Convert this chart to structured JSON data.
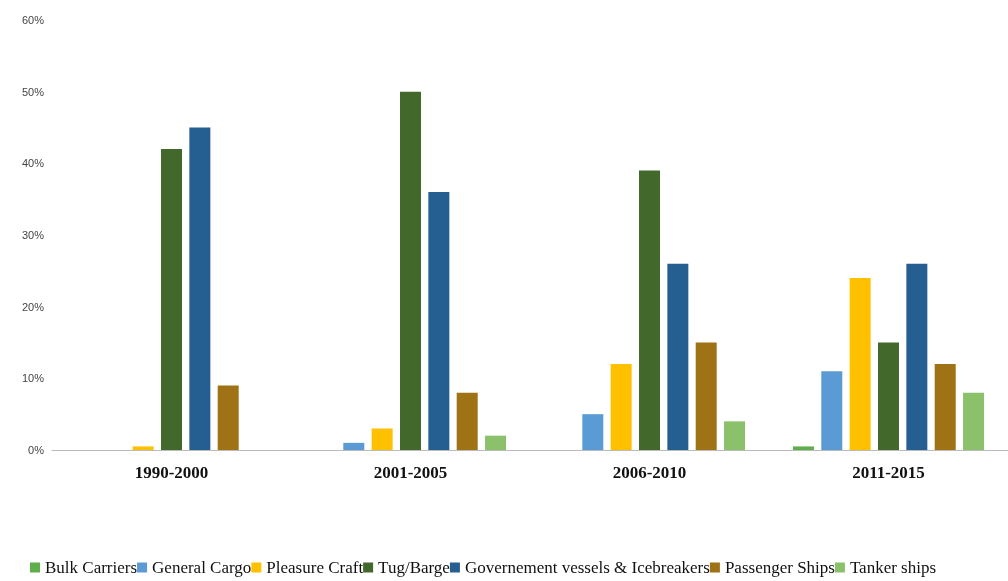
{
  "chart_data": {
    "type": "bar",
    "categories": [
      "1990-2000",
      "2001-2005",
      "2006-2010",
      "2011-2015"
    ],
    "series": [
      {
        "name": "Bulk Carriers",
        "color": "#5fae4c",
        "values": [
          0,
          0,
          0,
          0.5
        ]
      },
      {
        "name": "General Cargo",
        "color": "#5b9bd5",
        "values": [
          0,
          1,
          5,
          11
        ]
      },
      {
        "name": "Pleasure Craft",
        "color": "#ffc000",
        "values": [
          0.5,
          3,
          12,
          24
        ]
      },
      {
        "name": "Tug/Barge",
        "color": "#43682b",
        "values": [
          42,
          50,
          39,
          15
        ]
      },
      {
        "name": "Governement vessels & Icebreakers",
        "color": "#255e91",
        "values": [
          45,
          36,
          26,
          26
        ]
      },
      {
        "name": "Passenger Ships",
        "color": "#9e7215",
        "values": [
          9,
          8,
          15,
          12
        ]
      },
      {
        "name": "Tanker ships",
        "color": "#8bc16a",
        "values": [
          0,
          2,
          4,
          8
        ]
      }
    ],
    "ylim": [
      0,
      60
    ],
    "yticks": [
      {
        "value": 0,
        "label": "0%"
      },
      {
        "value": 10,
        "label": "10%"
      },
      {
        "value": 20,
        "label": "20%"
      },
      {
        "value": 30,
        "label": "30%"
      },
      {
        "value": 40,
        "label": "40%"
      },
      {
        "value": 50,
        "label": "50%"
      },
      {
        "value": 60,
        "label": "60%"
      }
    ],
    "grid": false,
    "legend": "bottom"
  }
}
